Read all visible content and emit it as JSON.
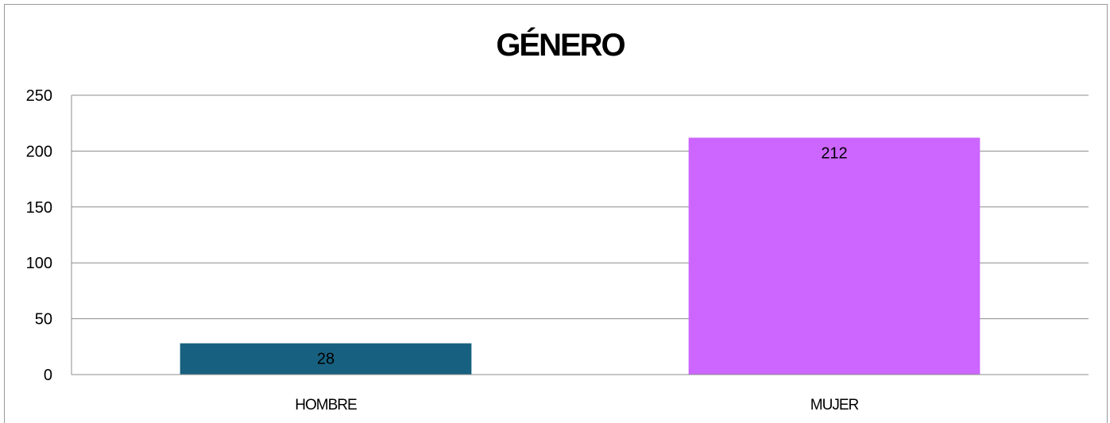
{
  "chart_data": {
    "type": "bar",
    "title": "GÉNERO",
    "categories": [
      "HOMBRE",
      "MUJER"
    ],
    "values": [
      28,
      212
    ],
    "colors": [
      "#17607f",
      "#cc66ff"
    ],
    "xlabel": "",
    "ylabel": "",
    "ylim": [
      0,
      250
    ],
    "yticks": [
      "0",
      "50",
      "100",
      "150",
      "200",
      "250"
    ],
    "grid": true,
    "legend": "none",
    "data_labels": [
      "28",
      "212"
    ]
  }
}
